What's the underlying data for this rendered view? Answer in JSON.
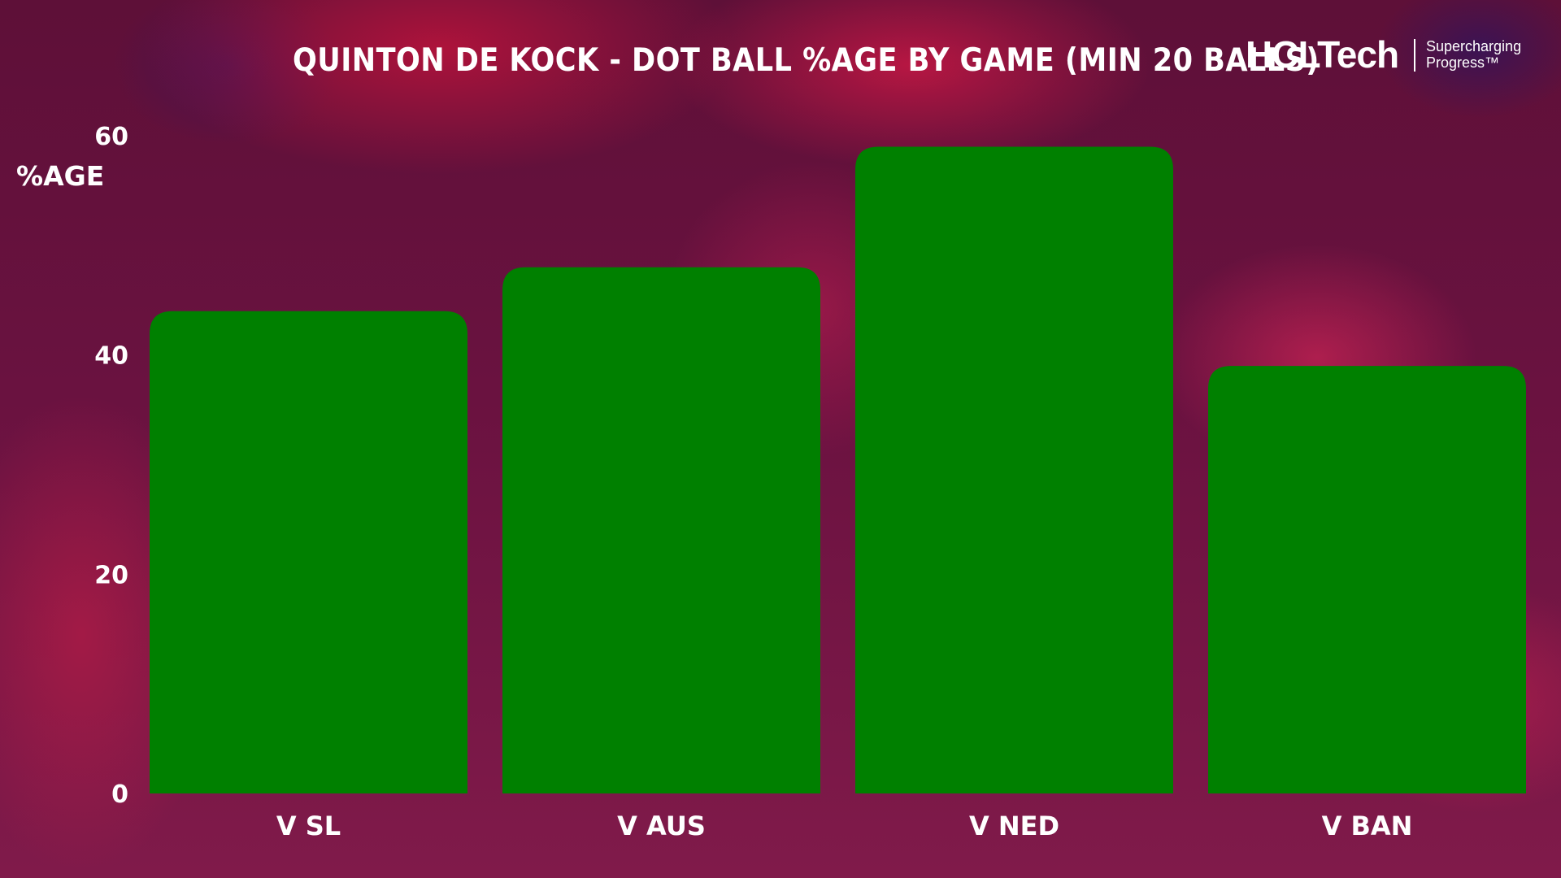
{
  "brand": {
    "name": "HCLTech",
    "tagline_line1": "Supercharging",
    "tagline_line2": "Progress™"
  },
  "colors": {
    "bar": "#008000",
    "text": "#ffffff"
  },
  "chart_data": {
    "type": "bar",
    "title": "QUINTON DE KOCK - DOT BALL %AGE BY GAME (MIN 20 BALLS)",
    "xlabel": "",
    "ylabel": "%AGE",
    "categories": [
      "V SL",
      "V AUS",
      "V NED",
      "V BAN"
    ],
    "values": [
      44,
      48,
      59,
      39
    ],
    "ylim": [
      0,
      60
    ],
    "yticks": [
      0,
      20,
      40,
      60
    ],
    "grid": false,
    "legend": "none"
  }
}
